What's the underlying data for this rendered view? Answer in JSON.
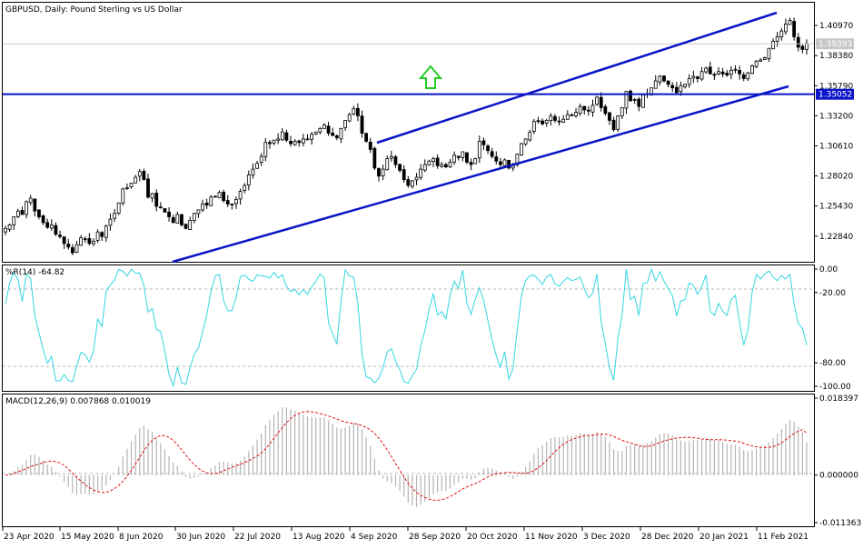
{
  "chart_data": [
    {
      "type": "candlestick",
      "symbol_label": "GBPUSD, Daily:  Pound Sterling vs US Dollar",
      "y_ticks": [
        1.4097,
        1.3838,
        1.3579,
        1.332,
        1.3061,
        1.2802,
        1.2543,
        1.2284
      ],
      "y_tick_labels": [
        "1.40970",
        "1.38380",
        "1.35790",
        "1.33200",
        "1.30610",
        "1.28020",
        "1.25430",
        "1.22840"
      ],
      "ylim": [
        1.2063,
        1.4293
      ],
      "current_price": 1.39393,
      "current_price_label": "1.39393",
      "horizontal_level": 1.35052,
      "horizontal_level_label": "1.35052",
      "series_seed_closes": [
        1.235,
        1.238,
        1.245,
        1.25,
        1.247,
        1.258,
        1.261,
        1.25,
        1.245,
        1.24,
        1.236,
        1.238,
        1.23,
        1.228,
        1.222,
        1.219,
        1.214,
        1.221,
        1.227,
        1.226,
        1.222,
        1.224,
        1.232,
        1.228,
        1.237,
        1.243,
        1.248,
        1.257,
        1.269,
        1.27,
        1.274,
        1.279,
        1.284,
        1.277,
        1.262,
        1.265,
        1.254,
        1.253,
        1.249,
        1.245,
        1.24,
        1.247,
        1.238,
        1.235,
        1.242,
        1.248,
        1.251,
        1.256,
        1.255,
        1.262,
        1.262,
        1.266,
        1.259,
        1.256,
        1.256,
        1.26,
        1.267,
        1.272,
        1.281,
        1.286,
        1.291,
        1.297,
        1.309,
        1.308,
        1.311,
        1.312,
        1.318,
        1.311,
        1.308,
        1.31,
        1.309,
        1.312,
        1.312,
        1.316,
        1.318,
        1.321,
        1.324,
        1.317,
        1.315,
        1.313,
        1.321,
        1.328,
        1.333,
        1.338,
        1.332,
        1.317,
        1.31,
        1.303,
        1.287,
        1.28,
        1.286,
        1.295,
        1.297,
        1.29,
        1.285,
        1.277,
        1.272,
        1.276,
        1.279,
        1.286,
        1.29,
        1.293,
        1.295,
        1.289,
        1.29,
        1.288,
        1.292,
        1.298,
        1.296,
        1.301,
        1.292,
        1.29,
        1.295,
        1.31,
        1.307,
        1.302,
        1.297,
        1.293,
        1.29,
        1.294,
        1.287,
        1.289,
        1.299,
        1.308,
        1.312,
        1.318,
        1.327,
        1.327,
        1.325,
        1.328,
        1.332,
        1.328,
        1.327,
        1.329,
        1.333,
        1.332,
        1.335,
        1.34,
        1.337,
        1.336,
        1.341,
        1.348,
        1.339,
        1.334,
        1.328,
        1.32,
        1.332,
        1.339,
        1.353,
        1.345,
        1.346,
        1.34,
        1.35,
        1.351,
        1.356,
        1.362,
        1.366,
        1.362,
        1.359,
        1.356,
        1.352,
        1.358,
        1.359,
        1.364,
        1.366,
        1.364,
        1.37,
        1.373,
        1.368,
        1.367,
        1.37,
        1.368,
        1.367,
        1.371,
        1.372,
        1.368,
        1.364,
        1.369,
        1.375,
        1.379,
        1.38,
        1.382,
        1.39,
        1.396,
        1.4,
        1.405,
        1.411,
        1.414,
        1.4,
        1.391,
        1.389,
        1.394
      ]
    },
    {
      "type": "line",
      "label": "%R(14) -64.82",
      "y_ticks": [
        0,
        -20,
        -80,
        -100
      ],
      "y_tick_labels": [
        "0.00",
        "-20.00",
        "-80.00",
        "-100.00"
      ],
      "ylim": [
        -100,
        0
      ],
      "last_value": -64.82
    },
    {
      "type": "histogram+line",
      "label": "MACD(12,26,9) 0.007868 0.010019",
      "y_ticks": [
        0.018397,
        0.0,
        -0.011363
      ],
      "y_tick_labels": [
        "0.018397",
        "0.000000",
        "-0.011363"
      ],
      "ylim": [
        -0.011363,
        0.018397
      ],
      "macd_last": 0.007868,
      "signal_last": 0.010019
    }
  ],
  "x_axis": {
    "date_labels": [
      "23 Apr 2020",
      "15 May 2020",
      "8 Jun 2020",
      "30 Jun 2020",
      "22 Jul 2020",
      "13 Aug 2020",
      "4 Sep 2020",
      "28 Sep 2020",
      "20 Oct 2020",
      "11 Nov 2020",
      "3 Dec 2020",
      "28 Dec 2020",
      "20 Jan 2021",
      "11 Feb 2021"
    ]
  },
  "colors": {
    "bull_body": "#ffffff",
    "bear_body": "#000000",
    "candle_outline": "#000000",
    "trend_channel": "#0a14c8",
    "horizontal_level": "#0a14c8",
    "arrow": "#22cc22",
    "wpr_line": "#33d6e0",
    "macd_hist": "#b4b4b4",
    "macd_signal": "#e01010",
    "grid_dash": "#b4b4b4",
    "price_line": "#c8c8c8"
  }
}
